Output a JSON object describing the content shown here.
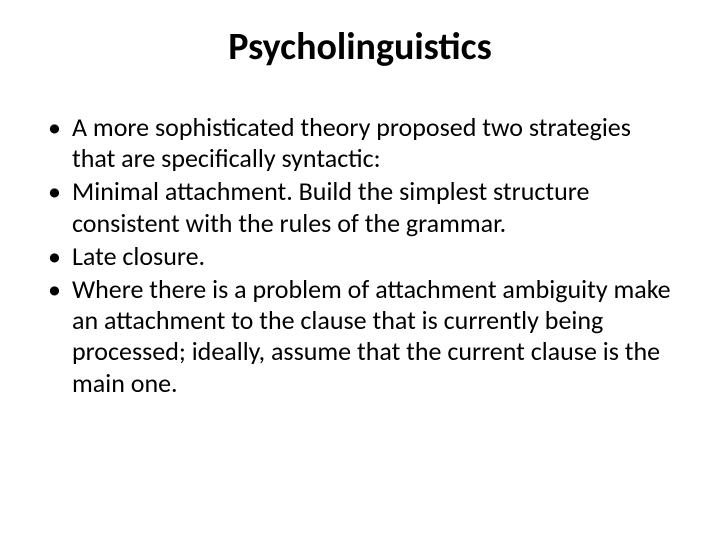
{
  "slide": {
    "title": "Psycholinguistics",
    "title_fontsize": 38,
    "title_weight": 700,
    "body_fontsize": 26,
    "background_color": "#ffffff",
    "text_color": "#000000",
    "bullets": [
      "A more sophisticated theory proposed two strategies that are specifically syntactic:",
      " Minimal attachment. Build the simplest structure consistent with the rules of the grammar.",
      " Late closure.",
      " Where there is a problem of attachment ambiguity make an attachment to the clause that is currently being processed; ideally, assume that the current clause is the main one."
    ]
  }
}
